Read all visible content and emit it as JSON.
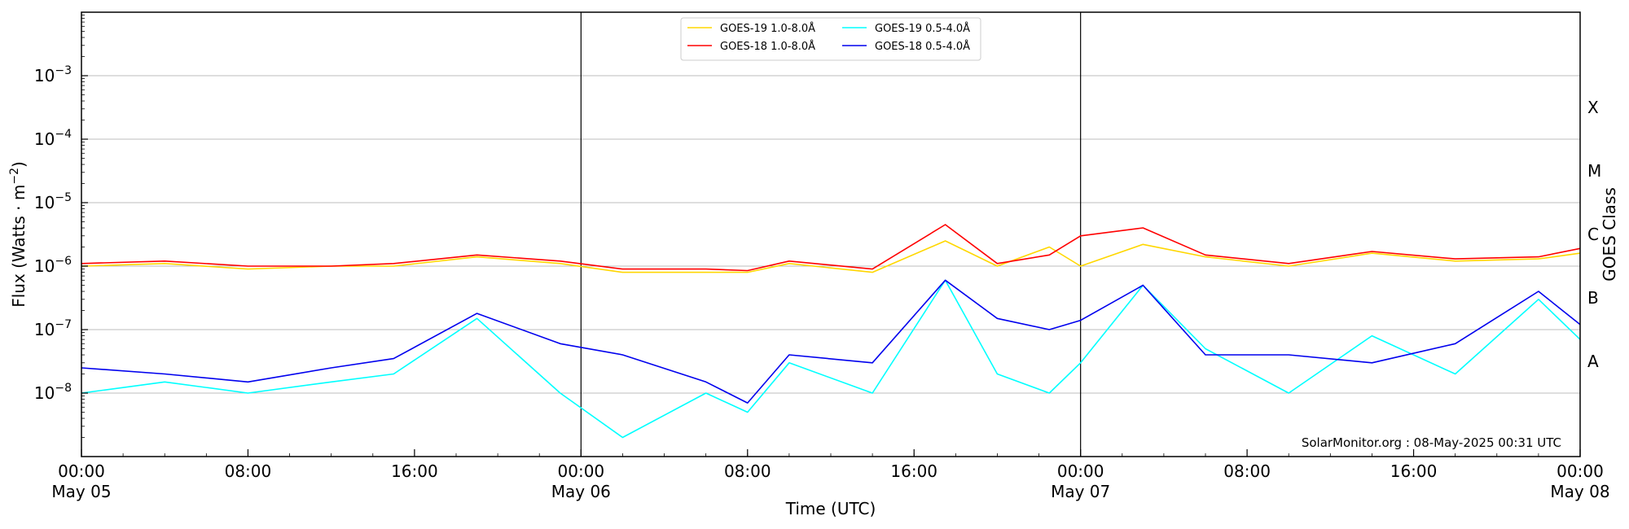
{
  "chart_data": {
    "type": "line",
    "xlabel": "Time (UTC)",
    "ylabel": "Flux (Watts · m",
    "ylabel_sup": "−2",
    "ylabel_close": ")",
    "y2label": "GOES Class",
    "yscale": "log",
    "ylim": [
      1e-09,
      0.01
    ],
    "xlim": [
      "2025-05-05 00:00",
      "2025-05-08 00:00"
    ],
    "x_ticks": [
      {
        "t": "2025-05-05 00:00",
        "time": "00:00",
        "date": "May 05"
      },
      {
        "t": "2025-05-05 08:00",
        "time": "08:00",
        "date": ""
      },
      {
        "t": "2025-05-05 16:00",
        "time": "16:00",
        "date": ""
      },
      {
        "t": "2025-05-06 00:00",
        "time": "00:00",
        "date": "May 06"
      },
      {
        "t": "2025-05-06 08:00",
        "time": "08:00",
        "date": ""
      },
      {
        "t": "2025-05-06 16:00",
        "time": "16:00",
        "date": ""
      },
      {
        "t": "2025-05-07 00:00",
        "time": "00:00",
        "date": "May 07"
      },
      {
        "t": "2025-05-07 08:00",
        "time": "08:00",
        "date": ""
      },
      {
        "t": "2025-05-07 16:00",
        "time": "16:00",
        "date": ""
      },
      {
        "t": "2025-05-08 00:00",
        "time": "00:00",
        "date": "May 08"
      }
    ],
    "y_ticks": [
      {
        "v": 1e-08,
        "base": "10",
        "exp": "−8"
      },
      {
        "v": 1e-07,
        "base": "10",
        "exp": "−7"
      },
      {
        "v": 1e-06,
        "base": "10",
        "exp": "−6"
      },
      {
        "v": 1e-05,
        "base": "10",
        "exp": "−5"
      },
      {
        "v": 0.0001,
        "base": "10",
        "exp": "−4"
      },
      {
        "v": 0.001,
        "base": "10",
        "exp": "−3"
      }
    ],
    "goes_classes": [
      {
        "label": "A",
        "v": 3.16e-08
      },
      {
        "label": "B",
        "v": 3.16e-07
      },
      {
        "label": "C",
        "v": 3.16e-06
      },
      {
        "label": "M",
        "v": 3.16e-05
      },
      {
        "label": "X",
        "v": 0.000316
      }
    ],
    "day_boundaries": [
      "2025-05-06 00:00",
      "2025-05-07 00:00"
    ],
    "grid": "horizontal",
    "legend_position": "top-center",
    "footer": "SolarMonitor.org : 08-May-2025 00:31 UTC",
    "series": [
      {
        "name": "GOES-19 1.0-8.0Å",
        "color": "#ffd700",
        "band": "long",
        "x": [
          "2025-05-05 00:00",
          "2025-05-05 04:00",
          "2025-05-05 08:00",
          "2025-05-05 12:00",
          "2025-05-05 15:00",
          "2025-05-05 19:00",
          "2025-05-05 23:00",
          "2025-05-06 02:00",
          "2025-05-06 06:00",
          "2025-05-06 08:00",
          "2025-05-06 10:00",
          "2025-05-06 14:00",
          "2025-05-06 17:30",
          "2025-05-06 20:00",
          "2025-05-06 22:30",
          "2025-05-07 00:00",
          "2025-05-07 03:00",
          "2025-05-07 06:00",
          "2025-05-07 10:00",
          "2025-05-07 14:00",
          "2025-05-07 18:00",
          "2025-05-07 22:00",
          "2025-05-08 00:00"
        ],
        "y": [
          1e-06,
          1.1e-06,
          9e-07,
          1e-06,
          1e-06,
          1.4e-06,
          1.1e-06,
          8e-07,
          8e-07,
          8e-07,
          1.1e-06,
          8e-07,
          2.5e-06,
          1e-06,
          2e-06,
          1e-06,
          2.2e-06,
          1.4e-06,
          1e-06,
          1.6e-06,
          1.2e-06,
          1.3e-06,
          1.6e-06
        ]
      },
      {
        "name": "GOES-18 1.0-8.0Å",
        "color": "#ff0000",
        "band": "long",
        "x": [
          "2025-05-05 00:00",
          "2025-05-05 04:00",
          "2025-05-05 08:00",
          "2025-05-05 12:00",
          "2025-05-05 15:00",
          "2025-05-05 19:00",
          "2025-05-05 23:00",
          "2025-05-06 02:00",
          "2025-05-06 06:00",
          "2025-05-06 08:00",
          "2025-05-06 10:00",
          "2025-05-06 14:00",
          "2025-05-06 17:30",
          "2025-05-06 20:00",
          "2025-05-06 22:30",
          "2025-05-07 00:00",
          "2025-05-07 03:00",
          "2025-05-07 06:00",
          "2025-05-07 10:00",
          "2025-05-07 14:00",
          "2025-05-07 18:00",
          "2025-05-07 22:00",
          "2025-05-08 00:00"
        ],
        "y": [
          1.1e-06,
          1.2e-06,
          1e-06,
          1e-06,
          1.1e-06,
          1.5e-06,
          1.2e-06,
          9e-07,
          9e-07,
          8.5e-07,
          1.2e-06,
          9e-07,
          4.5e-06,
          1.1e-06,
          1.5e-06,
          3e-06,
          4e-06,
          1.5e-06,
          1.1e-06,
          1.7e-06,
          1.3e-06,
          1.4e-06,
          1.9e-06
        ]
      },
      {
        "name": "GOES-19 0.5-4.0Å",
        "color": "#00ffff",
        "band": "short",
        "x": [
          "2025-05-05 00:00",
          "2025-05-05 04:00",
          "2025-05-05 08:00",
          "2025-05-05 12:00",
          "2025-05-05 15:00",
          "2025-05-05 19:00",
          "2025-05-05 23:00",
          "2025-05-06 02:00",
          "2025-05-06 06:00",
          "2025-05-06 08:00",
          "2025-05-06 10:00",
          "2025-05-06 14:00",
          "2025-05-06 17:30",
          "2025-05-06 20:00",
          "2025-05-06 22:30",
          "2025-05-07 00:00",
          "2025-05-07 03:00",
          "2025-05-07 06:00",
          "2025-05-07 10:00",
          "2025-05-07 14:00",
          "2025-05-07 18:00",
          "2025-05-07 22:00",
          "2025-05-08 00:00"
        ],
        "y": [
          1e-08,
          1.5e-08,
          1e-08,
          1.5e-08,
          2e-08,
          1.5e-07,
          1e-08,
          2e-09,
          1e-08,
          5e-09,
          3e-08,
          1e-08,
          6e-07,
          2e-08,
          1e-08,
          3e-08,
          5e-07,
          5e-08,
          1e-08,
          8e-08,
          2e-08,
          3e-07,
          7e-08
        ]
      },
      {
        "name": "GOES-18 0.5-4.0Å",
        "color": "#0000ee",
        "band": "short",
        "x": [
          "2025-05-05 00:00",
          "2025-05-05 04:00",
          "2025-05-05 08:00",
          "2025-05-05 12:00",
          "2025-05-05 15:00",
          "2025-05-05 19:00",
          "2025-05-05 23:00",
          "2025-05-06 02:00",
          "2025-05-06 06:00",
          "2025-05-06 08:00",
          "2025-05-06 10:00",
          "2025-05-06 14:00",
          "2025-05-06 17:30",
          "2025-05-06 20:00",
          "2025-05-06 22:30",
          "2025-05-07 00:00",
          "2025-05-07 03:00",
          "2025-05-07 06:00",
          "2025-05-07 10:00",
          "2025-05-07 14:00",
          "2025-05-07 18:00",
          "2025-05-07 22:00",
          "2025-05-08 00:00"
        ],
        "y": [
          2.5e-08,
          2e-08,
          1.5e-08,
          2.5e-08,
          3.5e-08,
          1.8e-07,
          6e-08,
          4e-08,
          1.5e-08,
          7e-09,
          4e-08,
          3e-08,
          6e-07,
          1.5e-07,
          1e-07,
          1.4e-07,
          5e-07,
          4e-08,
          4e-08,
          3e-08,
          6e-08,
          4e-07,
          1.2e-07
        ]
      }
    ]
  }
}
